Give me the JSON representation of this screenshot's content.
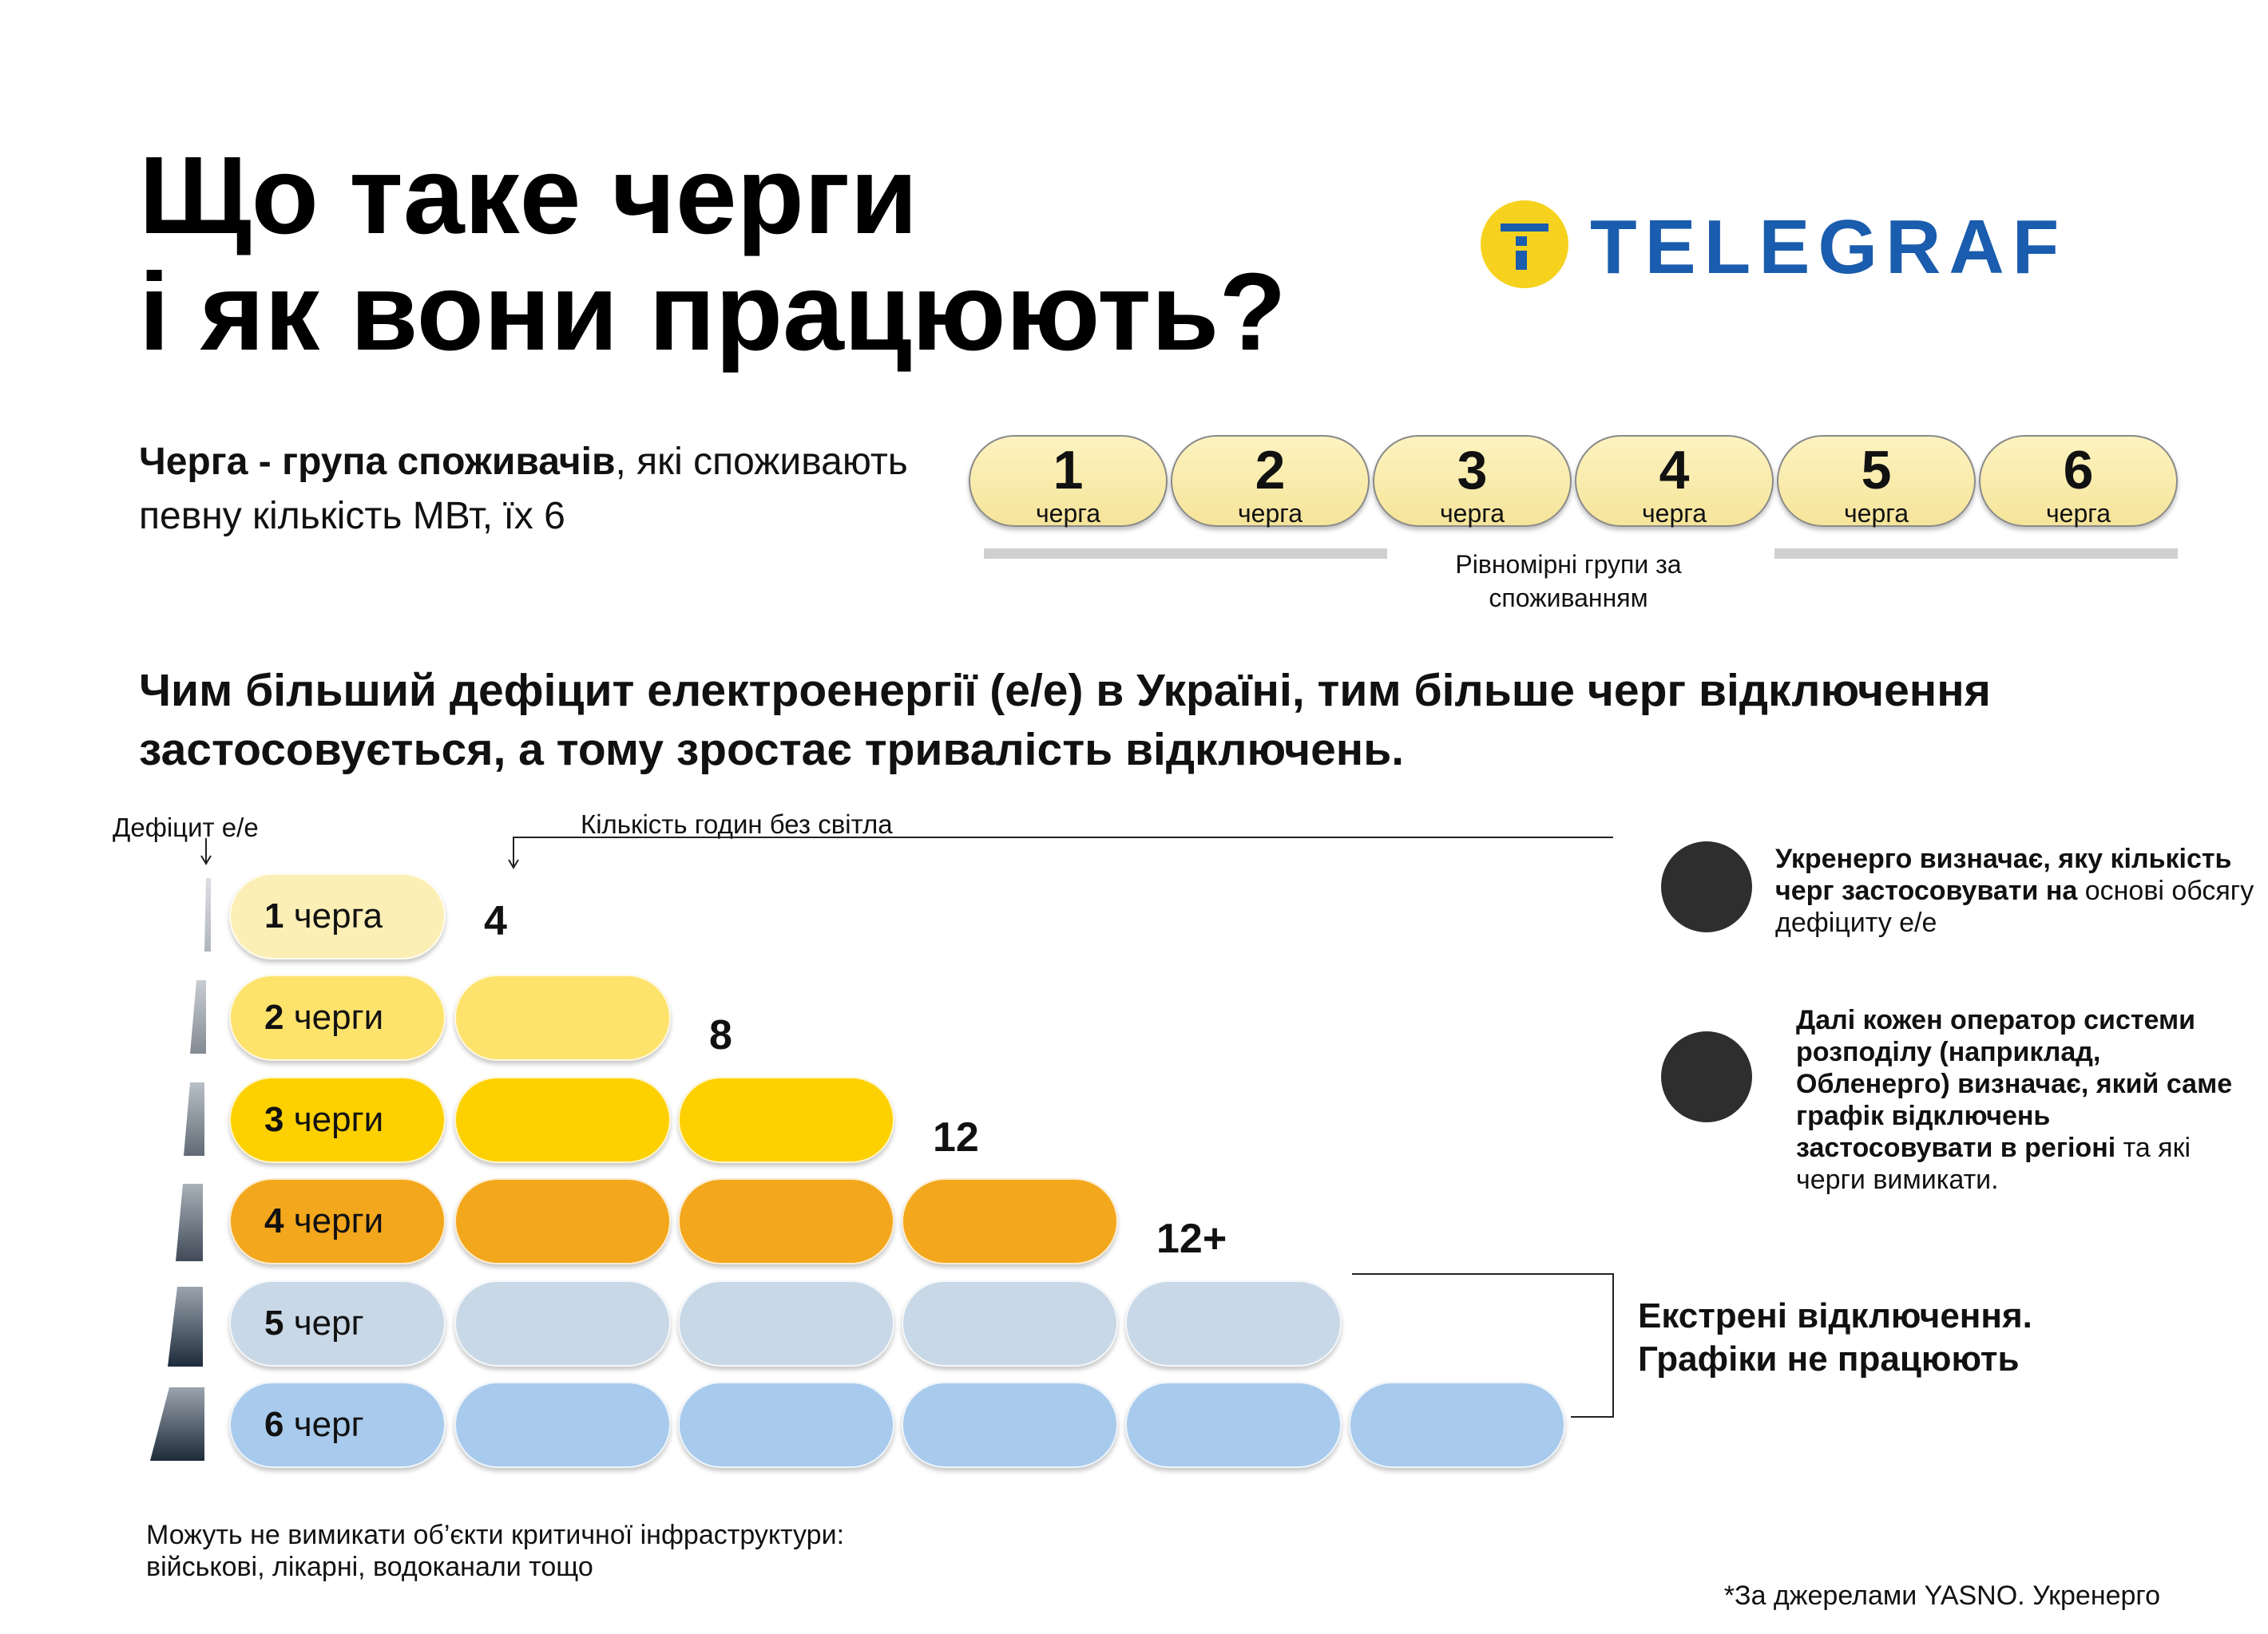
{
  "title": {
    "line1": "Що таке черги",
    "line2": "і як вони працюють?"
  },
  "logo": "TELEGRAF",
  "definition": {
    "bold": "Черга - група споживачів",
    "regular": ", які споживають певну кількість МВт, їх 6"
  },
  "queues": [
    {
      "number": "1",
      "label": "черга"
    },
    {
      "number": "2",
      "label": "черга"
    },
    {
      "number": "3",
      "label": "черга"
    },
    {
      "number": "4",
      "label": "черга"
    },
    {
      "number": "5",
      "label": "черга"
    },
    {
      "number": "6",
      "label": "черга"
    }
  ],
  "queues_caption": "Рівномірні групи за споживанням",
  "headline": "Чим більший дефіцит електроенергії (е/е) в Україні, тим більше черг відключення застосовується, а тому зростає тривалість відключень.",
  "deficit_label": "Дефіцит е/е",
  "hours_label": "Кількість годин без світла",
  "rows": [
    {
      "number": "1",
      "word": "черга",
      "hours": "4",
      "color": "#fcefb6",
      "label_color": "#fcefb6"
    },
    {
      "number": "2",
      "word": "черги",
      "hours": "8",
      "color": "#fde26c",
      "label_color": "#fde26c"
    },
    {
      "number": "3",
      "word": "черги",
      "hours": "12",
      "color": "#fdd000",
      "label_color": "#fdd000"
    },
    {
      "number": "4",
      "word": "черги",
      "hours": "12+",
      "color": "#f3a71d",
      "label_color": "#f3a71d"
    },
    {
      "number": "5",
      "word": "черг",
      "color": "#c9d8e6",
      "label_color": "#c9d8e6"
    },
    {
      "number": "6",
      "word": "черг",
      "color": "#a8caec",
      "label_color": "#a8caec"
    }
  ],
  "emergency": {
    "line1": "Екстрені відключення.",
    "line2": "Графіки не працюють"
  },
  "notes": [
    {
      "bold": "Укренерго визначає, яку кількість черг застосовувати на",
      "regular": " основі обсягу дефіциту е/е"
    },
    {
      "bold": "Далі кожен оператор системи розподілу (наприклад, Обленерго) визначає, який саме графік відключень застосовувати в регіоні",
      "regular": " та які черги вимикати."
    }
  ],
  "footnote": {
    "line1": "Можуть не вимикати об’єкти критичної інфраструктури:",
    "line2": "військові, лікарні, водоканали тощо"
  },
  "source": "*За джерелами YASNO. Укренерго"
}
